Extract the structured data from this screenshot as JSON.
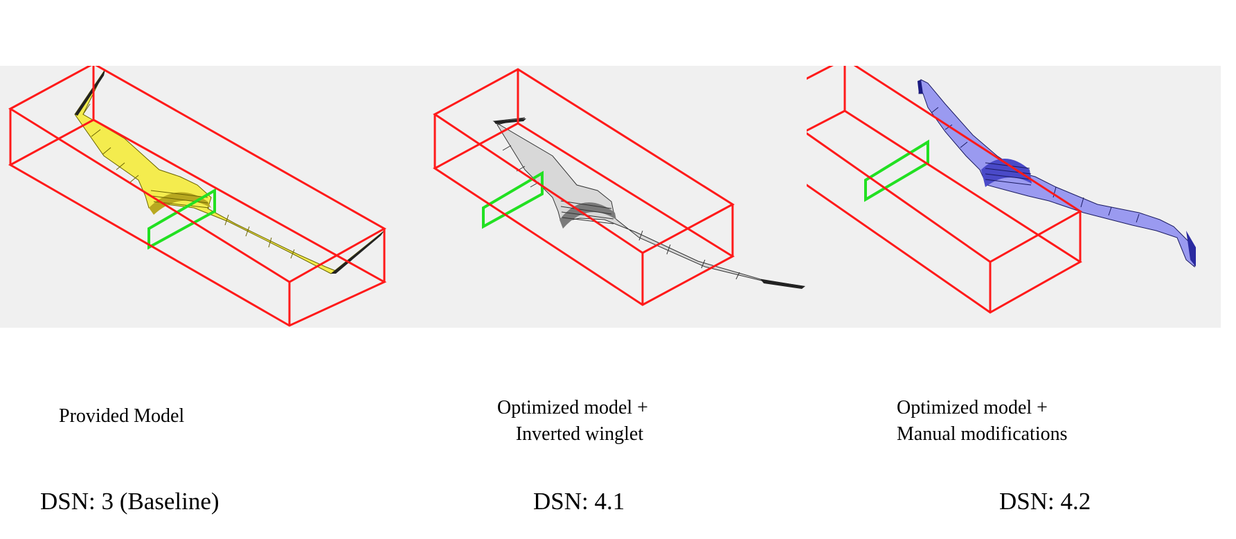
{
  "panels": [
    {
      "caption_lines": [
        "Provided Model"
      ],
      "dsn": "DSN: 3 (Baseline)",
      "model_color": "#f4ec4e",
      "model_shade": "#b8a820"
    },
    {
      "caption_lines": [
        "Optimized model +",
        "Inverted winglet"
      ],
      "dsn": "DSN: 4.1",
      "model_color": "#d8d8d8",
      "model_shade": "#7a7a7a"
    },
    {
      "caption_lines": [
        "Optimized model +",
        "Manual modifications"
      ],
      "dsn": "DSN: 4.2",
      "model_color": "#9a9af0",
      "model_shade": "#4a4ac8"
    }
  ],
  "colors": {
    "viewport_bg": "#f0f0f0",
    "bounding_box": "#ff1a1a",
    "section_frame": "#22e022"
  }
}
